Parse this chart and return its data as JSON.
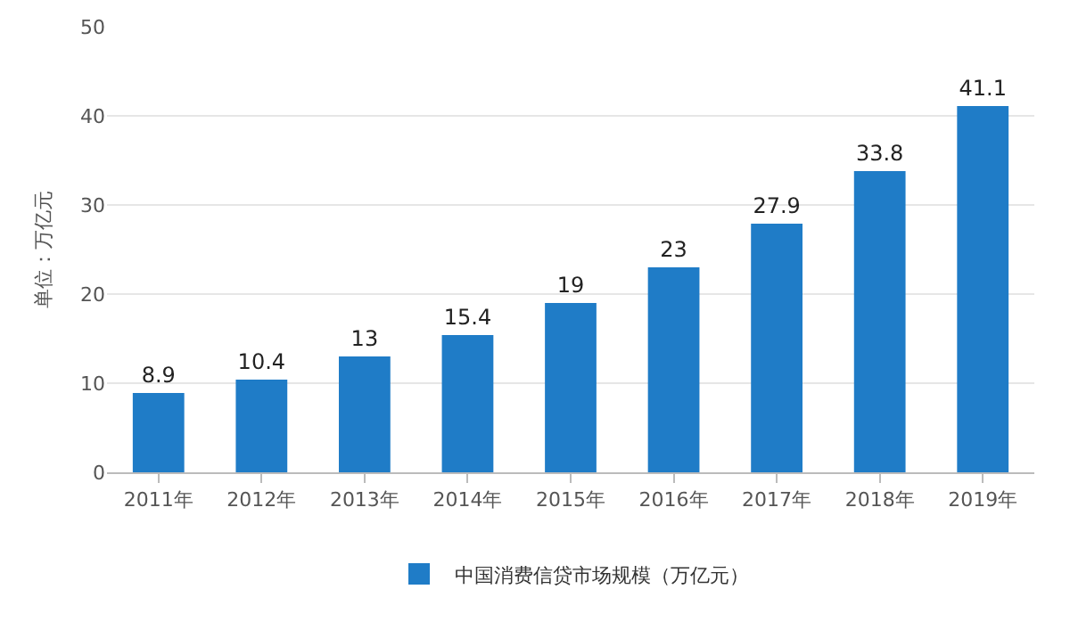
{
  "chart_data": {
    "type": "bar",
    "categories": [
      "2011年",
      "2012年",
      "2013年",
      "2014年",
      "2015年",
      "2016年",
      "2017年",
      "2018年",
      "2019年"
    ],
    "series": [
      {
        "name": "中国消费信贷市场规模（万亿元）",
        "color": "#1f7cc7",
        "values": [
          8.9,
          10.4,
          13,
          15.4,
          19,
          23,
          27.9,
          33.8,
          41.1
        ]
      }
    ],
    "ylabel": "单位：万亿元",
    "ylim": [
      0,
      50
    ],
    "yticks": [
      0,
      10,
      20,
      30,
      40,
      50
    ],
    "grid": "y",
    "legend": "bottom",
    "data_labels": true
  }
}
